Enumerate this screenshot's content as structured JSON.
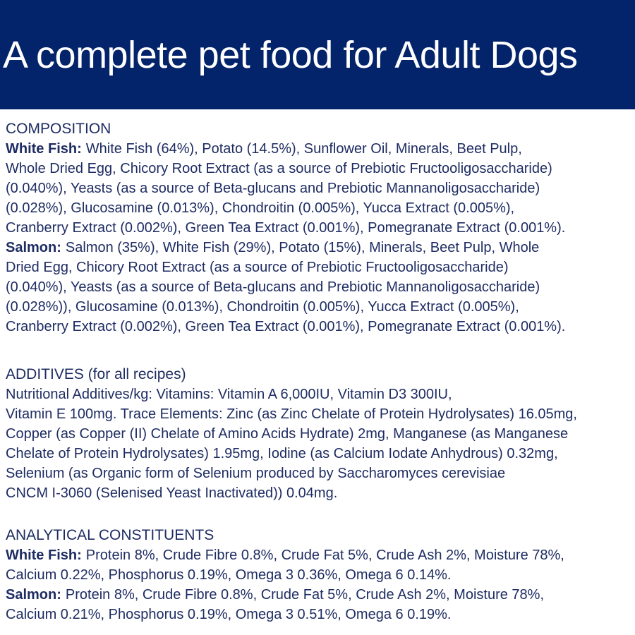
{
  "colors": {
    "banner_background": "#03236a",
    "banner_text": "#ffffff",
    "body_text": "#1e2c62",
    "page_background": "#ffffff"
  },
  "banner": {
    "title": "A complete pet food for Adult Dogs"
  },
  "sections": [
    {
      "heading": "COMPOSITION",
      "heading_suffix": "",
      "paragraphs": [
        {
          "lead": "White Fish:",
          "lines": [
            "White Fish (64%), Potato (14.5%), Sunflower Oil, Minerals, Beet Pulp,",
            "Whole Dried Egg, Chicory Root Extract (as a source of Prebiotic Fructooligosaccharide)",
            "(0.040%), Yeasts (as a source of Beta-glucans and Prebiotic Mannanoligosaccharide)",
            "(0.028%), Glucosamine (0.013%), Chondroitin (0.005%), Yucca Extract (0.005%),",
            "Cranberry Extract (0.002%), Green Tea Extract (0.001%), Pomegranate Extract (0.001%)."
          ]
        },
        {
          "lead": "Salmon:",
          "lines": [
            "Salmon (35%), White Fish (29%), Potato (15%), Minerals, Beet Pulp, Whole",
            "Dried Egg, Chicory Root Extract (as a source of Prebiotic Fructooligosaccharide)",
            "(0.040%), Yeasts (as a source of Beta-glucans and Prebiotic Mannanoligosaccharide)",
            "(0.028%)), Glucosamine (0.013%), Chondroitin (0.005%), Yucca Extract (0.005%),",
            "Cranberry Extract (0.002%), Green Tea Extract (0.001%), Pomegranate Extract (0.001%)."
          ]
        }
      ]
    },
    {
      "heading": "ADDITIVES",
      "heading_suffix": " (for all recipes)",
      "paragraphs": [
        {
          "lead": "",
          "lines": [
            "Nutritional Additives/kg: Vitamins: Vitamin A 6,000IU, Vitamin D3 300IU,",
            "Vitamin E 100mg. Trace Elements: Zinc (as Zinc Chelate of Protein Hydrolysates) 16.05mg,",
            "Copper (as Copper (II) Chelate of Amino Acids Hydrate) 2mg, Manganese (as Manganese",
            "Chelate of Protein Hydrolysates) 1.95mg, Iodine (as Calcium Iodate Anhydrous) 0.32mg,",
            "Selenium (as Organic form of Selenium produced by Saccharomyces cerevisiae",
            "CNCM I-3060 (Selenised Yeast Inactivated)) 0.04mg."
          ]
        }
      ]
    },
    {
      "heading": "ANALYTICAL CONSTITUENTS",
      "heading_suffix": "",
      "paragraphs": [
        {
          "lead": "White Fish:",
          "lines": [
            "Protein 8%, Crude Fibre 0.8%, Crude Fat 5%, Crude Ash 2%, Moisture 78%,",
            "Calcium 0.22%, Phosphorus 0.19%, Omega 3 0.36%, Omega 6 0.14%."
          ]
        },
        {
          "lead": "Salmon:",
          "lines": [
            "Protein 8%, Crude Fibre 0.8%, Crude Fat 5%, Crude Ash 2%, Moisture 78%,",
            "Calcium 0.21%, Phosphorus 0.19%, Omega 3 0.51%, Omega 6 0.19%."
          ]
        }
      ]
    }
  ]
}
